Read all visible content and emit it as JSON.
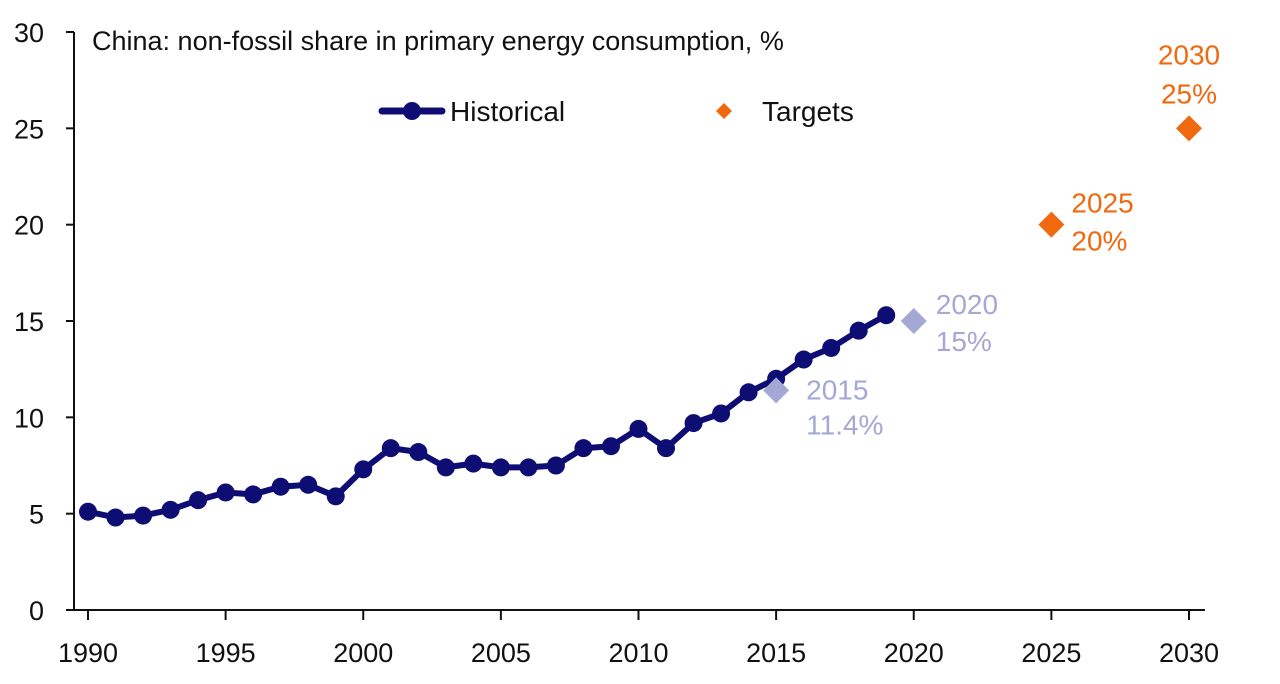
{
  "chart_data": {
    "type": "line",
    "title": "China: non-fossil share in primary energy consumption, %",
    "xlabel": "",
    "ylabel": "",
    "xlim": [
      1990,
      2030
    ],
    "ylim": [
      0,
      30
    ],
    "yticks": [
      0,
      5,
      10,
      15,
      20,
      25,
      30
    ],
    "xticks": [
      1990,
      1995,
      2000,
      2005,
      2010,
      2015,
      2020,
      2025,
      2030
    ],
    "grid": false,
    "legend_position": "top-center",
    "colors": {
      "historical": "#0d0d73",
      "target_future": "#f0690f",
      "target_past": "#a3a8d4"
    },
    "series": [
      {
        "name": "Historical",
        "marker": "circle",
        "x": [
          1990,
          1991,
          1992,
          1993,
          1994,
          1995,
          1996,
          1997,
          1998,
          1999,
          2000,
          2001,
          2002,
          2003,
          2004,
          2005,
          2006,
          2007,
          2008,
          2009,
          2010,
          2011,
          2012,
          2013,
          2014,
          2015,
          2016,
          2017,
          2018,
          2019
        ],
        "values": [
          5.1,
          4.8,
          4.9,
          5.2,
          5.7,
          6.1,
          6.0,
          6.4,
          6.5,
          5.9,
          7.3,
          8.4,
          8.2,
          7.4,
          7.6,
          7.4,
          7.4,
          7.5,
          8.4,
          8.5,
          9.4,
          8.4,
          9.7,
          10.2,
          11.3,
          12.0,
          13.0,
          13.6,
          14.5,
          15.3
        ]
      },
      {
        "name": "Targets",
        "marker": "diamond",
        "x": [
          2015,
          2020,
          2025,
          2030
        ],
        "values": [
          11.4,
          15,
          20,
          25
        ]
      }
    ],
    "annotations": [
      {
        "year_label": "2015",
        "value_label": "11.4%",
        "x": 2015,
        "y": 11.4,
        "style": "past"
      },
      {
        "year_label": "2020",
        "value_label": "15%",
        "x": 2020,
        "y": 15,
        "style": "past"
      },
      {
        "year_label": "2025",
        "value_label": "20%",
        "x": 2025,
        "y": 20,
        "style": "future"
      },
      {
        "year_label": "2030",
        "value_label": "25%",
        "x": 2030,
        "y": 25,
        "style": "future"
      }
    ]
  }
}
